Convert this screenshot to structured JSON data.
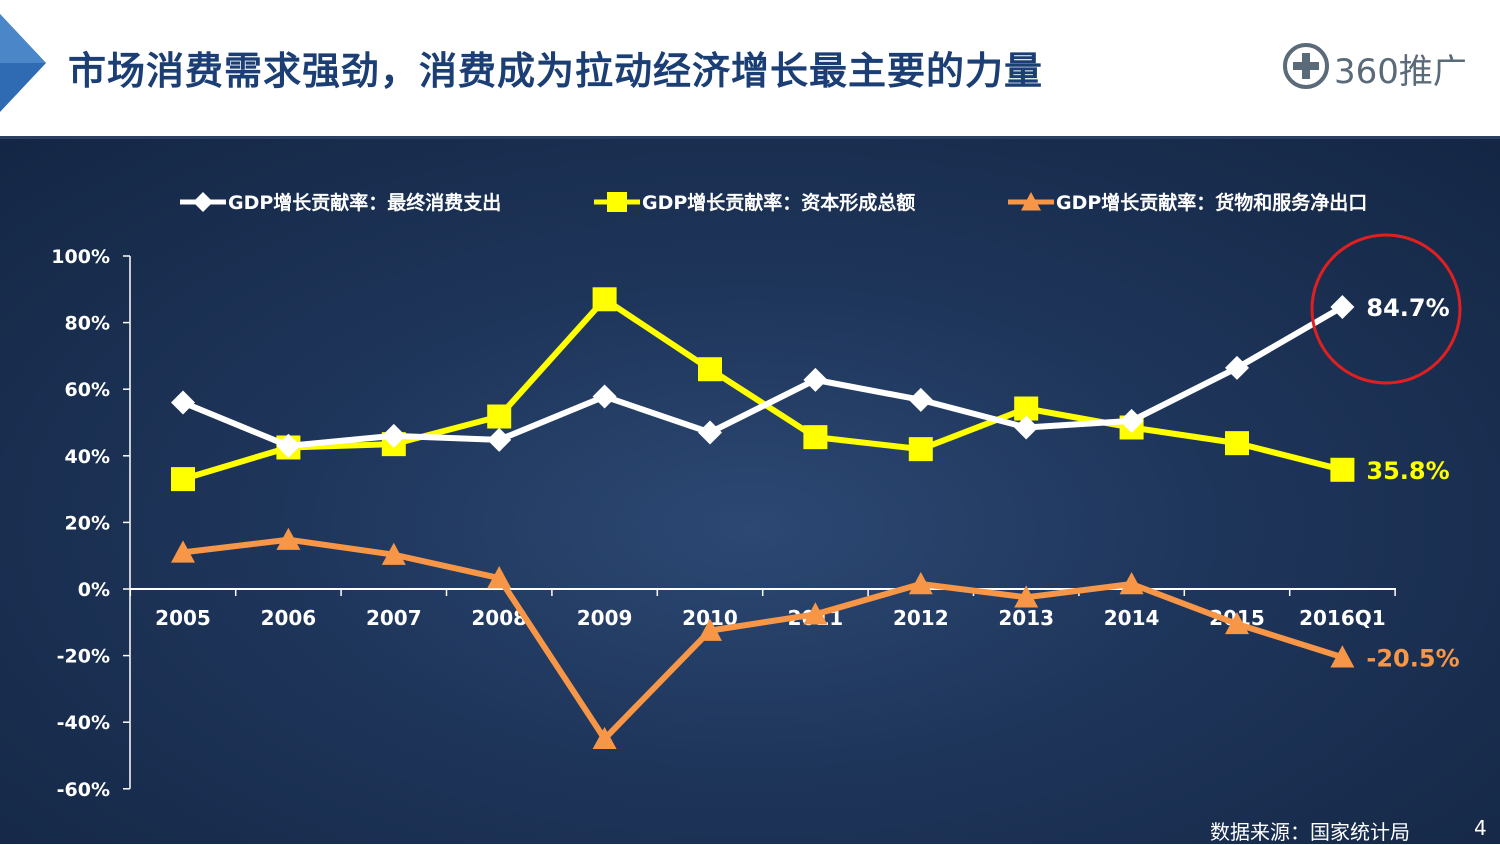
{
  "slide": {
    "title": "市场消费需求强劲，消费成为拉动经济增长最主要的力量",
    "logo_text": "360推广",
    "logo_icon": "plus-circle-icon",
    "source": "数据来源：国家统计局",
    "page_number": "4"
  },
  "colors": {
    "title": "#1b3f74",
    "arrow": "#2e6bb3",
    "background": "#1e355a",
    "consumption": "#ffffff",
    "capital": "#ffff00",
    "net_exports": "#f79646",
    "highlight_circle": "#e02020"
  },
  "chart_data": {
    "type": "line",
    "title": "",
    "xlabel": "",
    "ylabel": "",
    "categories": [
      "2005",
      "2006",
      "2007",
      "2008",
      "2009",
      "2010",
      "2011",
      "2012",
      "2013",
      "2014",
      "2015",
      "2016Q1"
    ],
    "y_ticks": [
      "100%",
      "80%",
      "60%",
      "40%",
      "20%",
      "0%",
      "-20%",
      "-40%",
      "-60%"
    ],
    "ylim": [
      -60,
      100
    ],
    "grid": false,
    "legend_position": "top",
    "series": [
      {
        "name": "GDP增长贡献率：最终消费支出",
        "color": "#ffffff",
        "marker": "diamond",
        "values": [
          56.0,
          43.0,
          46.0,
          44.8,
          57.8,
          47.0,
          62.8,
          56.8,
          48.5,
          50.5,
          66.4,
          84.7
        ],
        "end_label": "84.7%"
      },
      {
        "name": "GDP增长贡献率：资本形成总额",
        "color": "#ffff00",
        "marker": "square",
        "values": [
          33.0,
          42.5,
          43.5,
          51.8,
          87.0,
          66.0,
          45.6,
          42.0,
          54.2,
          48.5,
          43.8,
          35.8
        ],
        "end_label": "35.8%"
      },
      {
        "name": "GDP增长贡献率：货物和服务净出口",
        "color": "#f79646",
        "marker": "triangle",
        "values": [
          11.0,
          14.8,
          10.3,
          3.3,
          -45.0,
          -12.5,
          -7.6,
          1.5,
          -2.5,
          1.5,
          -10.5,
          -20.5
        ],
        "end_label": "-20.5%"
      }
    ],
    "highlight": "84.7%"
  }
}
